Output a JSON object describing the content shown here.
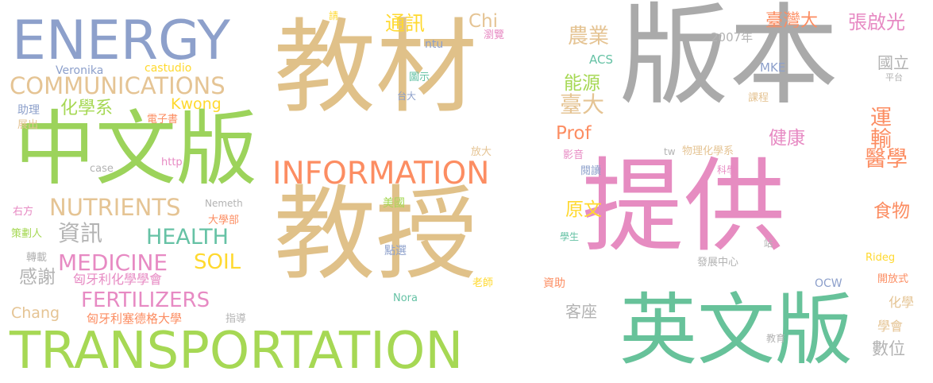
{
  "words": [
    {
      "text": "版本",
      "color": "#aaaaaa"
    },
    {
      "text": "教材",
      "color": "#e0c189"
    },
    {
      "text": "教授",
      "color": "#e0c189"
    },
    {
      "text": "提供",
      "color": "#e68cc1"
    },
    {
      "text": "中文版",
      "color": "#9cd35b"
    },
    {
      "text": "英文版",
      "color": "#67c29a"
    },
    {
      "text": "ENERGY",
      "color": "#8da0cb"
    },
    {
      "text": "TRANSPORTATION",
      "color": "#a6d854"
    },
    {
      "text": "INFORMATION",
      "color": "#fc8d62"
    },
    {
      "text": "COMMUNICATIONS",
      "color": "#e5c494"
    },
    {
      "text": "NUTRIENTS",
      "color": "#e5c494"
    },
    {
      "text": "MEDICINE",
      "color": "#e78ac3"
    },
    {
      "text": "FERTILIZERS",
      "color": "#e78ac3"
    },
    {
      "text": "HEALTH",
      "color": "#66c2a5"
    },
    {
      "text": "SOIL",
      "color": "#ffd92f"
    },
    {
      "text": "Chang",
      "color": "#e5c494"
    },
    {
      "text": "Chi",
      "color": "#e5c494"
    },
    {
      "text": "Kwong",
      "color": "#ffd92f"
    },
    {
      "text": "Prof",
      "color": "#fc8d62"
    },
    {
      "text": "化學系",
      "color": "#a6d854"
    },
    {
      "text": "資訊",
      "color": "#b3b3b3"
    },
    {
      "text": "感謝",
      "color": "#b3b3b3"
    },
    {
      "text": "通訊",
      "color": "#ffd92f"
    },
    {
      "text": "能源",
      "color": "#a6d854"
    },
    {
      "text": "臺大",
      "color": "#e5c494"
    },
    {
      "text": "農業",
      "color": "#e5c494"
    },
    {
      "text": "臺灣大",
      "color": "#fc8d62"
    },
    {
      "text": "張啟光",
      "color": "#e78ac3"
    },
    {
      "text": "健康",
      "color": "#e78ac3"
    },
    {
      "text": "運輸",
      "color": "#fc8d62"
    },
    {
      "text": "醫學",
      "color": "#fc8d62"
    },
    {
      "text": "食物",
      "color": "#fc8d62"
    },
    {
      "text": "原文",
      "color": "#ffd92f"
    },
    {
      "text": "客座",
      "color": "#b3b3b3"
    },
    {
      "text": "國立",
      "color": "#b3b3b3"
    },
    {
      "text": "數位",
      "color": "#b3b3b3"
    },
    {
      "text": "學會",
      "color": "#e5c494"
    },
    {
      "text": "化學",
      "color": "#e5c494"
    },
    {
      "text": "匈牙利化學學會",
      "color": "#e78ac3"
    },
    {
      "text": "匈牙利塞德格大學",
      "color": "#fc8d62"
    },
    {
      "text": "Veronika",
      "color": "#8da0cb"
    },
    {
      "text": "castudio",
      "color": "#ffd92f"
    },
    {
      "text": "助理",
      "color": "#8da0cb"
    },
    {
      "text": "展出",
      "color": "#e5c494"
    },
    {
      "text": "電子書",
      "color": "#fc8d62"
    },
    {
      "text": "case",
      "color": "#b3b3b3"
    },
    {
      "text": "http",
      "color": "#e78ac3"
    },
    {
      "text": "右方",
      "color": "#e78ac3"
    },
    {
      "text": "策劃人",
      "color": "#a6d854"
    },
    {
      "text": "轉載",
      "color": "#b3b3b3"
    },
    {
      "text": "大學部",
      "color": "#fc8d62"
    },
    {
      "text": "Nemeth",
      "color": "#b3b3b3"
    },
    {
      "text": "美國",
      "color": "#a6d854"
    },
    {
      "text": "點選",
      "color": "#8da0cb"
    },
    {
      "text": "Nora",
      "color": "#66c2a5"
    },
    {
      "text": "老師",
      "color": "#ffd92f"
    },
    {
      "text": "指導",
      "color": "#b3b3b3"
    },
    {
      "text": "請",
      "color": "#ffd92f"
    },
    {
      "text": "瀏覽",
      "color": "#e78ac3"
    },
    {
      "text": "ntu",
      "color": "#8da0cb"
    },
    {
      "text": "圖示",
      "color": "#66c2a5"
    },
    {
      "text": "台大",
      "color": "#8da0cb"
    },
    {
      "text": "放大",
      "color": "#e5c494"
    },
    {
      "text": "2007年",
      "color": "#b3b3b3"
    },
    {
      "text": "ACS",
      "color": "#66c2a5"
    },
    {
      "text": "MKE",
      "color": "#8da0cb"
    },
    {
      "text": "平台",
      "color": "#b3b3b3"
    },
    {
      "text": "課程",
      "color": "#e5c494"
    },
    {
      "text": "影音",
      "color": "#e78ac3"
    },
    {
      "text": "tw",
      "color": "#b3b3b3"
    },
    {
      "text": "物理化學系",
      "color": "#e5c494"
    },
    {
      "text": "閱讀",
      "color": "#8da0cb"
    },
    {
      "text": "科學",
      "color": "#e78ac3"
    },
    {
      "text": "學生",
      "color": "#66c2a5"
    },
    {
      "text": "站",
      "color": "#b3b3b3"
    },
    {
      "text": "發展中心",
      "color": "#b3b3b3"
    },
    {
      "text": "資助",
      "color": "#fc8d62"
    },
    {
      "text": "Rideg",
      "color": "#ffd92f"
    },
    {
      "text": "OCW",
      "color": "#8da0cb"
    },
    {
      "text": "開放式",
      "color": "#fc8d62"
    },
    {
      "text": "教育",
      "color": "#b3b3b3"
    }
  ]
}
